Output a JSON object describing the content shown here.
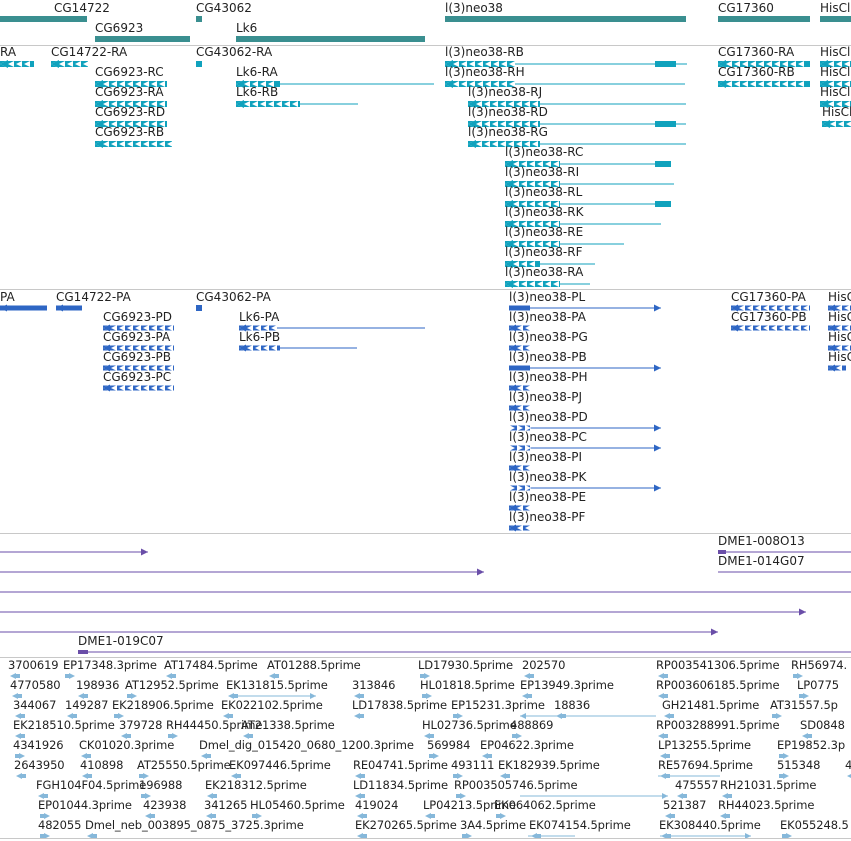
{
  "colors": {
    "gene": "#3a8f90",
    "transcript": "#10a2bd",
    "protein": "#2e66c4",
    "clone": "#6a4ea8",
    "est": "#86b8da",
    "separator": "#c8c8c8"
  },
  "genes": [
    {
      "label": "CG14722"
    },
    {
      "label": "CG6923"
    },
    {
      "label": "CG43062"
    },
    {
      "label": "Lk6"
    },
    {
      "label": "l(3)neo38"
    },
    {
      "label": "CG17360"
    },
    {
      "label": "HisCl"
    }
  ],
  "transcripts": [
    {
      "label": "RA"
    },
    {
      "label": "CG14722-RA"
    },
    {
      "label": "CG43062-RA"
    },
    {
      "label": "l(3)neo38-RB"
    },
    {
      "label": "CG17360-RA"
    },
    {
      "label": "HisCl"
    },
    {
      "label": "CG6923-RC"
    },
    {
      "label": "Lk6-RA"
    },
    {
      "label": "l(3)neo38-RH"
    },
    {
      "label": "CG17360-RB"
    },
    {
      "label": "HisCl"
    },
    {
      "label": "CG6923-RA"
    },
    {
      "label": "Lk6-RB"
    },
    {
      "label": "l(3)neo38-RJ"
    },
    {
      "label": "HisCl"
    },
    {
      "label": "CG6923-RD"
    },
    {
      "label": "l(3)neo38-RD"
    },
    {
      "label": "HisCl"
    },
    {
      "label": "CG6923-RB"
    },
    {
      "label": "l(3)neo38-RG"
    },
    {
      "label": "l(3)neo38-RC"
    },
    {
      "label": "l(3)neo38-RI"
    },
    {
      "label": "l(3)neo38-RL"
    },
    {
      "label": "l(3)neo38-RK"
    },
    {
      "label": "l(3)neo38-RE"
    },
    {
      "label": "l(3)neo38-RF"
    },
    {
      "label": "l(3)neo38-RA"
    }
  ],
  "proteins": [
    {
      "label": "PA"
    },
    {
      "label": "CG14722-PA"
    },
    {
      "label": "CG43062-PA"
    },
    {
      "label": "l(3)neo38-PL"
    },
    {
      "label": "CG17360-PA"
    },
    {
      "label": "HisC"
    },
    {
      "label": "CG6923-PD"
    },
    {
      "label": "Lk6-PA"
    },
    {
      "label": "l(3)neo38-PA"
    },
    {
      "label": "CG17360-PB"
    },
    {
      "label": "HisC"
    },
    {
      "label": "CG6923-PA"
    },
    {
      "label": "Lk6-PB"
    },
    {
      "label": "l(3)neo38-PG"
    },
    {
      "label": "HisC"
    },
    {
      "label": "CG6923-PB"
    },
    {
      "label": "l(3)neo38-PB"
    },
    {
      "label": "HisC"
    },
    {
      "label": "CG6923-PC"
    },
    {
      "label": "l(3)neo38-PH"
    },
    {
      "label": "l(3)neo38-PJ"
    },
    {
      "label": "l(3)neo38-PD"
    },
    {
      "label": "l(3)neo38-PC"
    },
    {
      "label": "l(3)neo38-PI"
    },
    {
      "label": "l(3)neo38-PK"
    },
    {
      "label": "l(3)neo38-PE"
    },
    {
      "label": "l(3)neo38-PF"
    }
  ],
  "clones": [
    {
      "label": "DME1-008O13"
    },
    {
      "label": "DME1-014G07"
    },
    {
      "label": "DME1-019C07"
    }
  ],
  "ests": [
    {
      "label": "3700619"
    },
    {
      "label": "EP17348.3prime"
    },
    {
      "label": "AT17484.5prime"
    },
    {
      "label": "AT01288.5prime"
    },
    {
      "label": "LD17930.5prime"
    },
    {
      "label": "202570"
    },
    {
      "label": "RP003541306.5prime"
    },
    {
      "label": "RH56974."
    },
    {
      "label": "4770580"
    },
    {
      "label": "198936"
    },
    {
      "label": "AT12952.5prime"
    },
    {
      "label": "EK131815.5prime"
    },
    {
      "label": "313846"
    },
    {
      "label": "HL01818.5prime"
    },
    {
      "label": "EP13949.3prime"
    },
    {
      "label": "RP003606185.5prime"
    },
    {
      "label": "LP0775"
    },
    {
      "label": "344067"
    },
    {
      "label": "149287"
    },
    {
      "label": "EK218906.5prime"
    },
    {
      "label": "EK022102.5prime"
    },
    {
      "label": "LD17838.5prime"
    },
    {
      "label": "EP15231.3prime"
    },
    {
      "label": "18836"
    },
    {
      "label": "GH21481.5prime"
    },
    {
      "label": "AT31557.5p"
    },
    {
      "label": "EK218510.5prime"
    },
    {
      "label": "379728"
    },
    {
      "label": "RH44450.5prime"
    },
    {
      "label": "AT21338.5prime"
    },
    {
      "label": "HL02736.5prime"
    },
    {
      "label": "488869"
    },
    {
      "label": "RP003288991.5prime"
    },
    {
      "label": "SD0848"
    },
    {
      "label": "4341926"
    },
    {
      "label": "CK01020.3prime"
    },
    {
      "label": "Dmel_dig_015420_0680_1200.3prime"
    },
    {
      "label": "569984"
    },
    {
      "label": "EP04622.3prime"
    },
    {
      "label": "LP13255.5prime"
    },
    {
      "label": "EP19852.3p"
    },
    {
      "label": "2643950"
    },
    {
      "label": "410898"
    },
    {
      "label": "AT25550.5prime"
    },
    {
      "label": "EK097446.5prime"
    },
    {
      "label": "RE04741.5prime"
    },
    {
      "label": "493111"
    },
    {
      "label": "EK182939.5prime"
    },
    {
      "label": "RE57694.5prime"
    },
    {
      "label": "515348"
    },
    {
      "label": "4"
    },
    {
      "label": "FGH104F04.5prime"
    },
    {
      "label": "196988"
    },
    {
      "label": "EK218312.5prime"
    },
    {
      "label": "LD11834.5prime"
    },
    {
      "label": "RP003505746.5prime"
    },
    {
      "label": "475557"
    },
    {
      "label": "RH21031.5prime"
    },
    {
      "label": "EP01044.3prime"
    },
    {
      "label": "423938"
    },
    {
      "label": "341265"
    },
    {
      "label": "HL05460.5prime"
    },
    {
      "label": "419024"
    },
    {
      "label": "LP04213.5prime"
    },
    {
      "label": "EK064062.5prime"
    },
    {
      "label": "521387"
    },
    {
      "label": "RH44023.5prime"
    },
    {
      "label": "482055"
    },
    {
      "label": "Dmel_neb_003895_0875_3725.3prime"
    },
    {
      "label": "EK270265.5prime"
    },
    {
      "label": "3A4.5prime"
    },
    {
      "label": "EK074154.5prime"
    },
    {
      "label": "EK308440.5prime"
    },
    {
      "label": "EK055248.5"
    }
  ]
}
